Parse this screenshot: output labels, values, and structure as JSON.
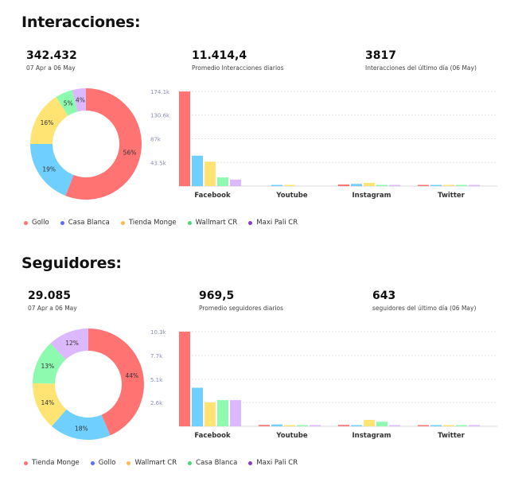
{
  "sections": [
    {
      "title": "Interacciones:",
      "stats": [
        {
          "value": "342.432",
          "label": "07 Apr a 06 May"
        },
        {
          "value": "11.414,4",
          "label": "Promedio Interacciones diarios"
        },
        {
          "value": "3817",
          "label": "Interacciones del último día (06 May)"
        }
      ],
      "legend": [
        {
          "name": "Gollo",
          "color": "#ff7373"
        },
        {
          "name": "Casa Blanca",
          "color": "#6fd0ff"
        },
        {
          "name": "Tienda Monge",
          "color": "#ffe473"
        },
        {
          "name": "Wallmart CR",
          "color": "#8dfab0"
        },
        {
          "name": "Maxi Pali CR",
          "color": "#dcb9ff"
        }
      ]
    },
    {
      "title": "Seguidores:",
      "stats": [
        {
          "value": "29.085",
          "label": "07 Apr a 06 May"
        },
        {
          "value": "969,5",
          "label": "Promedio seguidores diarios"
        },
        {
          "value": "643",
          "label": "seguidores del último día (06 May)"
        }
      ],
      "legend": [
        {
          "name": "Tienda Monge",
          "color": "#ff7373"
        },
        {
          "name": "Gollo",
          "color": "#6fd0ff"
        },
        {
          "name": "Wallmart CR",
          "color": "#ffe473"
        },
        {
          "name": "Casa Blanca",
          "color": "#8dfab0"
        },
        {
          "name": "Maxi Pali CR",
          "color": "#dcb9ff"
        }
      ]
    }
  ],
  "legend_dot_colors": [
    "#ff7373",
    "#5a6cff",
    "#ffb84d",
    "#4cd97a",
    "#8a3cc9"
  ],
  "chart_data": [
    {
      "type": "pie",
      "donut": true,
      "categories": [
        "Gollo",
        "Casa Blanca",
        "Tienda Monge",
        "Wallmart CR",
        "Maxi Pali CR"
      ],
      "values": [
        56,
        19,
        16,
        5,
        4
      ],
      "labels": [
        "56%",
        "19%",
        "16%",
        "5%",
        "4%"
      ],
      "colors": [
        "#ff7373",
        "#6fd0ff",
        "#ffe473",
        "#8dfab0",
        "#dcb9ff"
      ]
    },
    {
      "type": "bar",
      "categories": [
        "Facebook",
        "Youtube",
        "Instagram",
        "Twitter"
      ],
      "yticks": [
        "174.1k",
        "130.6k",
        "87k",
        "43.5k"
      ],
      "ytick_values": [
        174100,
        130600,
        87000,
        43500
      ],
      "ylim": [
        0,
        174100
      ],
      "grid": true,
      "series": [
        {
          "name": "Gollo",
          "color": "#ff7373",
          "values": [
            174100,
            0,
            3000,
            1500
          ]
        },
        {
          "name": "Casa Blanca",
          "color": "#6fd0ff",
          "values": [
            56000,
            1500,
            4000,
            1000
          ]
        },
        {
          "name": "Tienda Monge",
          "color": "#ffe473",
          "values": [
            45000,
            800,
            6000,
            800
          ]
        },
        {
          "name": "Wallmart CR",
          "color": "#8dfab0",
          "values": [
            16000,
            0,
            1000,
            300
          ]
        },
        {
          "name": "Maxi Pali CR",
          "color": "#dcb9ff",
          "values": [
            12000,
            0,
            500,
            300
          ]
        }
      ]
    },
    {
      "type": "pie",
      "donut": true,
      "categories": [
        "Tienda Monge",
        "Gollo",
        "Wallmart CR",
        "Casa Blanca",
        "Maxi Pali CR"
      ],
      "values": [
        44,
        18,
        14,
        13,
        12
      ],
      "labels": [
        "44%",
        "18%",
        "14%",
        "13%",
        "12%"
      ],
      "colors": [
        "#ff7373",
        "#6fd0ff",
        "#ffe473",
        "#8dfab0",
        "#dcb9ff"
      ]
    },
    {
      "type": "bar",
      "categories": [
        "Facebook",
        "Youtube",
        "Instagram",
        "Twitter"
      ],
      "yticks": [
        "10.3k",
        "7.7k",
        "5.1k",
        "2.6k"
      ],
      "ytick_values": [
        10300,
        7700,
        5100,
        2600
      ],
      "ylim": [
        0,
        10300
      ],
      "grid": true,
      "series": [
        {
          "name": "Tienda Monge",
          "color": "#ff7373",
          "values": [
            10300,
            150,
            150,
            80
          ]
        },
        {
          "name": "Gollo",
          "color": "#6fd0ff",
          "values": [
            4200,
            200,
            100,
            80
          ]
        },
        {
          "name": "Wallmart CR",
          "color": "#ffe473",
          "values": [
            2600,
            50,
            700,
            50
          ]
        },
        {
          "name": "Casa Blanca",
          "color": "#8dfab0",
          "values": [
            2850,
            50,
            500,
            50
          ]
        },
        {
          "name": "Maxi Pali CR",
          "color": "#dcb9ff",
          "values": [
            2850,
            50,
            100,
            50
          ]
        }
      ]
    }
  ]
}
